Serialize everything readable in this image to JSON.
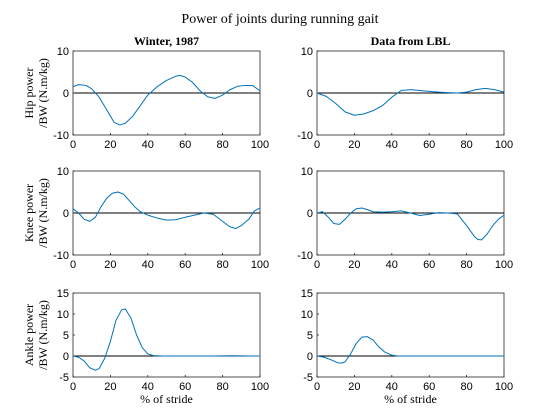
{
  "title": "Power of joints during running gait",
  "colors": {
    "series": "#0072BD",
    "zero_line": "#000000",
    "axes": "#262626"
  },
  "chart_data": [
    {
      "type": "line",
      "row": 0,
      "col": 0,
      "title": "Winter, 1987",
      "ylabel": [
        "Hip power",
        "/BW (N.m/kg)"
      ],
      "xlabel": "",
      "xlim": [
        0,
        100
      ],
      "ylim": [
        -10,
        10
      ],
      "xticks": [
        0,
        20,
        40,
        60,
        80,
        100
      ],
      "yticks": [
        -10,
        0,
        10
      ],
      "series": [
        {
          "x": [
            0,
            3,
            7,
            10,
            14,
            18,
            22,
            25,
            28,
            32,
            36,
            40,
            45,
            50,
            55,
            57,
            60,
            64,
            68,
            72,
            76,
            80,
            84,
            88,
            92,
            96,
            100
          ],
          "y": [
            1.5,
            2.0,
            1.8,
            1.0,
            -1.0,
            -4.0,
            -7.0,
            -7.6,
            -7.2,
            -5.5,
            -3.0,
            -0.5,
            1.5,
            3.0,
            4.0,
            4.2,
            3.8,
            2.5,
            0.5,
            -0.9,
            -1.3,
            -0.5,
            0.8,
            1.6,
            1.8,
            1.8,
            0.5
          ]
        }
      ]
    },
    {
      "type": "line",
      "row": 0,
      "col": 1,
      "title": "Data from LBL",
      "ylabel": [],
      "xlabel": "",
      "xlim": [
        0,
        100
      ],
      "ylim": [
        -10,
        10
      ],
      "xticks": [
        0,
        20,
        40,
        60,
        80,
        100
      ],
      "yticks": [
        -10,
        0,
        10
      ],
      "series": [
        {
          "x": [
            0,
            5,
            10,
            15,
            20,
            25,
            30,
            35,
            40,
            45,
            50,
            55,
            60,
            65,
            70,
            75,
            80,
            85,
            90,
            95,
            100
          ],
          "y": [
            0,
            -0.8,
            -2.5,
            -4.5,
            -5.3,
            -5.0,
            -4.2,
            -3.0,
            -1.0,
            0.6,
            0.8,
            0.6,
            0.4,
            0.2,
            0.1,
            0,
            0.2,
            0.8,
            1.1,
            0.8,
            0.2
          ]
        }
      ]
    },
    {
      "type": "line",
      "row": 1,
      "col": 0,
      "title": "",
      "ylabel": [
        "Knee power",
        "/BW (N.m/kg)"
      ],
      "xlabel": "",
      "xlim": [
        0,
        100
      ],
      "ylim": [
        -10,
        10
      ],
      "xticks": [
        0,
        20,
        40,
        60,
        80,
        100
      ],
      "yticks": [
        -10,
        0,
        10
      ],
      "series": [
        {
          "x": [
            0,
            3,
            6,
            9,
            12,
            15,
            18,
            21,
            24,
            27,
            30,
            33,
            36,
            40,
            45,
            50,
            55,
            60,
            65,
            70,
            75,
            80,
            84,
            87,
            90,
            94,
            97,
            100
          ],
          "y": [
            1.0,
            0,
            -1.5,
            -2.0,
            -1.0,
            1.5,
            3.5,
            4.7,
            5.0,
            4.5,
            3.0,
            1.5,
            0.3,
            -0.5,
            -1.2,
            -1.7,
            -1.6,
            -1.0,
            -0.5,
            0,
            -0.3,
            -2.0,
            -3.3,
            -3.7,
            -3.0,
            -1.5,
            0.5,
            1.2
          ]
        }
      ]
    },
    {
      "type": "line",
      "row": 1,
      "col": 1,
      "title": "",
      "ylabel": [],
      "xlabel": "",
      "xlim": [
        0,
        100
      ],
      "ylim": [
        -10,
        10
      ],
      "xticks": [
        0,
        20,
        40,
        60,
        80,
        100
      ],
      "yticks": [
        -10,
        0,
        10
      ],
      "series": [
        {
          "x": [
            0,
            3,
            6,
            9,
            12,
            15,
            18,
            21,
            24,
            27,
            30,
            35,
            40,
            45,
            50,
            55,
            60,
            65,
            70,
            75,
            80,
            84,
            86,
            88,
            91,
            94,
            97,
            100
          ],
          "y": [
            0,
            0.3,
            -1.0,
            -2.5,
            -2.7,
            -1.5,
            0,
            1.0,
            1.2,
            0.8,
            0.3,
            0.2,
            0.3,
            0.5,
            0,
            -0.6,
            -0.3,
            0.1,
            0,
            -0.2,
            -3.0,
            -5.5,
            -6.3,
            -6.4,
            -5.0,
            -3.0,
            -1.5,
            -0.5
          ]
        }
      ]
    },
    {
      "type": "line",
      "row": 2,
      "col": 0,
      "title": "",
      "ylabel": [
        "Ankle power",
        "/BW (N.m/kg)"
      ],
      "xlabel": "% of stride",
      "xlim": [
        0,
        100
      ],
      "ylim": [
        -5,
        15
      ],
      "xticks": [
        0,
        20,
        40,
        60,
        80,
        100
      ],
      "yticks": [
        -5,
        0,
        5,
        10,
        15
      ],
      "series": [
        {
          "x": [
            0,
            3,
            6,
            9,
            12,
            14,
            17,
            20,
            23,
            26,
            28,
            31,
            34,
            37,
            40,
            43,
            48,
            55,
            65,
            75,
            85,
            95,
            100
          ],
          "y": [
            0,
            -0.3,
            -1.2,
            -2.8,
            -3.4,
            -3.0,
            -0.5,
            3.5,
            8.5,
            11.0,
            11.2,
            9.0,
            5.0,
            2.0,
            0.5,
            0.1,
            0,
            0,
            0,
            0,
            0.05,
            0,
            0
          ]
        }
      ]
    },
    {
      "type": "line",
      "row": 2,
      "col": 1,
      "title": "",
      "ylabel": [],
      "xlabel": "% of stride",
      "xlim": [
        0,
        100
      ],
      "ylim": [
        -5,
        15
      ],
      "xticks": [
        0,
        20,
        40,
        60,
        80,
        100
      ],
      "yticks": [
        -5,
        0,
        5,
        10,
        15
      ],
      "series": [
        {
          "x": [
            0,
            4,
            8,
            11,
            13,
            15,
            18,
            21,
            24,
            27,
            30,
            33,
            36,
            40,
            43,
            48,
            55,
            65,
            75,
            85,
            95,
            100
          ],
          "y": [
            0,
            -0.3,
            -1.0,
            -1.6,
            -1.7,
            -1.4,
            0.5,
            3.0,
            4.5,
            4.6,
            3.8,
            2.2,
            1.0,
            0.2,
            0,
            0,
            0,
            0,
            0,
            0,
            0,
            0
          ]
        }
      ]
    }
  ]
}
